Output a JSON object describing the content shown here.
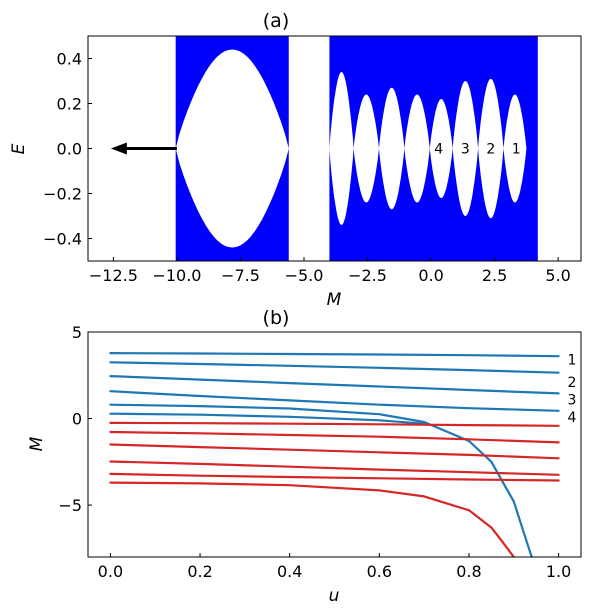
{
  "chart_data": [
    {
      "type": "area",
      "title": "(a)",
      "xlabel": "M",
      "ylabel": "E",
      "xlim": [
        -13.5,
        5.9
      ],
      "ylim": [
        -0.5,
        0.5
      ],
      "xticks": [
        -12.5,
        -10.0,
        -7.5,
        -5.0,
        -2.5,
        0.0,
        2.5,
        5.0
      ],
      "xtick_labels": [
        "−12.5",
        "−10.0",
        "−7.5",
        "−5.0",
        "−2.5",
        "0.0",
        "2.5",
        "5.0"
      ],
      "yticks": [
        0.4,
        0.2,
        0.0,
        -0.2,
        -0.4
      ],
      "ytick_labels": [
        "0.4",
        "0.2",
        "0.0",
        "−0.2",
        "−0.4"
      ],
      "fill_color": "#0000ff",
      "bands": [
        [
          -10.05,
          -5.6
        ],
        [
          -4.0,
          4.2
        ]
      ],
      "gaps": [
        {
          "m_from": -10.05,
          "m_to": -5.6,
          "half_width": 0.44
        },
        {
          "m_from": -4.0,
          "m_to": -3.05,
          "half_width": 0.34
        },
        {
          "m_from": -3.05,
          "m_to": -2.05,
          "half_width": 0.24
        },
        {
          "m_from": -2.05,
          "m_to": -1.05,
          "half_width": 0.27
        },
        {
          "m_from": -1.05,
          "m_to": -0.05,
          "half_width": 0.24
        },
        {
          "m_from": -0.05,
          "m_to": 0.85,
          "half_width": 0.22
        },
        {
          "m_from": 0.85,
          "m_to": 1.85,
          "half_width": 0.3
        },
        {
          "m_from": 1.85,
          "m_to": 2.85,
          "half_width": 0.31
        },
        {
          "m_from": 2.85,
          "m_to": 3.75,
          "half_width": 0.24
        }
      ],
      "arrow": {
        "from_m": -10.0,
        "to_m": -12.6,
        "e": 0.0,
        "color": "#000000"
      },
      "annotations": [
        {
          "text": "4",
          "m": 0.3,
          "e": 0.0
        },
        {
          "text": "3",
          "m": 1.35,
          "e": 0.0
        },
        {
          "text": "2",
          "m": 2.35,
          "e": 0.0
        },
        {
          "text": "1",
          "m": 3.35,
          "e": 0.0
        }
      ]
    },
    {
      "type": "line",
      "title": "(b)",
      "xlabel": "u",
      "ylabel": "M",
      "xlim": [
        -0.05,
        1.05
      ],
      "ylim": [
        -8.0,
        5.0
      ],
      "xticks": [
        0.0,
        0.2,
        0.4,
        0.6,
        0.8,
        1.0
      ],
      "xtick_labels": [
        "0.0",
        "0.2",
        "0.4",
        "0.6",
        "0.8",
        "1.0"
      ],
      "yticks": [
        5,
        0,
        -5
      ],
      "ytick_labels": [
        "5",
        "0",
        "−5"
      ],
      "series": [
        {
          "color": "#1f77b4",
          "x": [
            0.0,
            0.2,
            0.4,
            0.6,
            0.8,
            1.0
          ],
          "y": [
            3.78,
            3.76,
            3.73,
            3.7,
            3.66,
            3.6
          ]
        },
        {
          "color": "#1f77b4",
          "x": [
            0.0,
            0.2,
            0.4,
            0.6,
            0.8,
            1.0
          ],
          "y": [
            3.25,
            3.15,
            3.05,
            2.93,
            2.8,
            2.65
          ]
        },
        {
          "color": "#1f77b4",
          "x": [
            0.0,
            0.2,
            0.4,
            0.6,
            0.8,
            1.0
          ],
          "y": [
            2.45,
            2.25,
            2.05,
            1.85,
            1.65,
            1.45
          ]
        },
        {
          "color": "#1f77b4",
          "x": [
            0.0,
            0.2,
            0.4,
            0.6,
            0.8,
            1.0
          ],
          "y": [
            1.58,
            1.3,
            1.05,
            0.8,
            0.6,
            0.45
          ]
        },
        {
          "color": "#1f77b4",
          "x": [
            0.0,
            0.2,
            0.4,
            0.6,
            0.7,
            0.8,
            0.85,
            0.9,
            0.93,
            0.94
          ],
          "y": [
            0.8,
            0.72,
            0.58,
            0.25,
            -0.2,
            -1.3,
            -2.5,
            -4.8,
            -7.2,
            -8.0
          ]
        },
        {
          "color": "#1f77b4",
          "x": [
            0.0,
            0.2,
            0.4,
            0.6,
            0.7
          ],
          "y": [
            0.28,
            0.22,
            0.1,
            -0.1,
            -0.3
          ]
        },
        {
          "color": "#d62728",
          "x": [
            0.0,
            0.2,
            0.4,
            0.6,
            0.8,
            1.0
          ],
          "y": [
            -0.25,
            -0.27,
            -0.3,
            -0.33,
            -0.38,
            -0.42
          ]
        },
        {
          "color": "#d62728",
          "x": [
            0.0,
            0.2,
            0.4,
            0.6,
            0.8,
            1.0
          ],
          "y": [
            -0.78,
            -0.85,
            -0.95,
            -1.05,
            -1.2,
            -1.38
          ]
        },
        {
          "color": "#d62728",
          "x": [
            0.0,
            0.2,
            0.4,
            0.6,
            0.8,
            1.0
          ],
          "y": [
            -1.5,
            -1.65,
            -1.8,
            -1.95,
            -2.1,
            -2.3
          ]
        },
        {
          "color": "#d62728",
          "x": [
            0.0,
            0.2,
            0.4,
            0.6,
            0.8,
            1.0
          ],
          "y": [
            -2.48,
            -2.62,
            -2.78,
            -2.95,
            -3.1,
            -3.25
          ]
        },
        {
          "color": "#d62728",
          "x": [
            0.0,
            0.2,
            0.4,
            0.6,
            0.8,
            1.0
          ],
          "y": [
            -3.2,
            -3.3,
            -3.38,
            -3.45,
            -3.52,
            -3.58
          ]
        },
        {
          "color": "#d62728",
          "x": [
            0.0,
            0.2,
            0.4,
            0.6,
            0.7,
            0.8,
            0.85,
            0.88,
            0.9
          ],
          "y": [
            -3.7,
            -3.75,
            -3.85,
            -4.15,
            -4.5,
            -5.3,
            -6.3,
            -7.3,
            -8.0
          ]
        }
      ],
      "annotations": [
        {
          "text": "1",
          "x": 1.02,
          "y": 3.4
        },
        {
          "text": "2",
          "x": 1.02,
          "y": 2.1
        },
        {
          "text": "3",
          "x": 1.02,
          "y": 1.1
        },
        {
          "text": "4",
          "x": 1.02,
          "y": 0.1
        }
      ]
    }
  ]
}
